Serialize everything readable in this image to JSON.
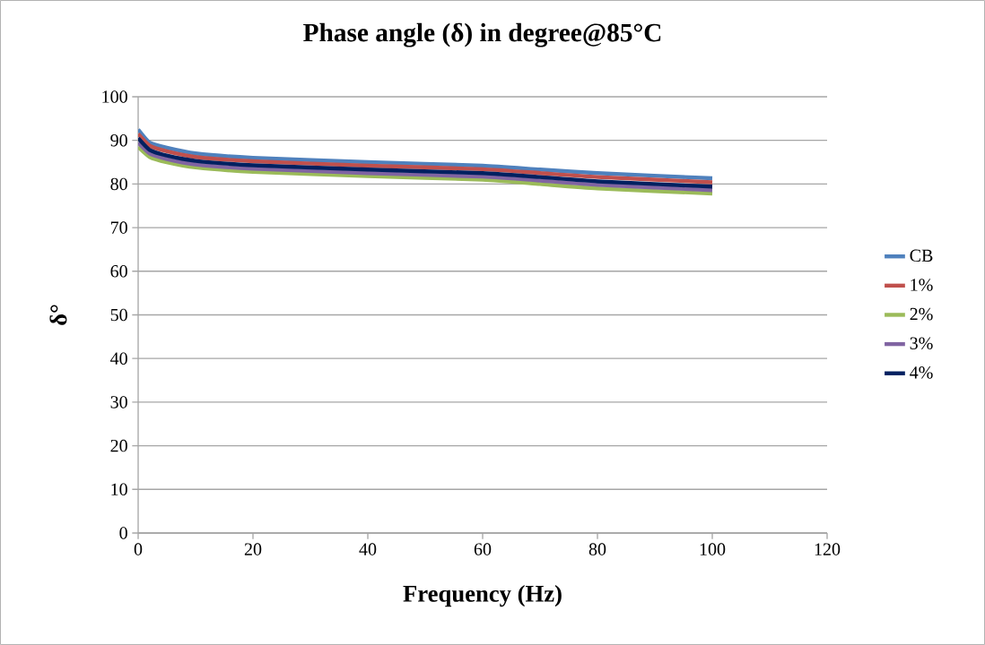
{
  "chart_data": {
    "type": "line",
    "title": "Phase angle (δ) in degree@85°C",
    "xlabel": "Frequency (Hz)",
    "ylabel": "δ°",
    "x": [
      0,
      2,
      5,
      10,
      20,
      40,
      60,
      70,
      80,
      100
    ],
    "series": [
      {
        "name": "CB",
        "color": "#4f81bd",
        "values": [
          92.5,
          89.5,
          88.3,
          87,
          86,
          85,
          84.2,
          83.3,
          82.5,
          81.3
        ]
      },
      {
        "name": "1%",
        "color": "#c0504d",
        "values": [
          91.5,
          88.8,
          87.5,
          86.2,
          85.2,
          84.2,
          83.4,
          82.5,
          81.6,
          80.4
        ]
      },
      {
        "name": "2%",
        "color": "#9bbb59",
        "values": [
          88.5,
          86.2,
          85,
          83.8,
          82.8,
          81.8,
          81,
          80,
          79,
          77.8
        ]
      },
      {
        "name": "3%",
        "color": "#8064a2",
        "values": [
          89.5,
          87,
          85.7,
          84.5,
          83.5,
          82.5,
          81.7,
          80.8,
          79.8,
          78.6
        ]
      },
      {
        "name": "4%",
        "color": "#002060",
        "values": [
          90.5,
          87.8,
          86.5,
          85.3,
          84.3,
          83.3,
          82.5,
          81.6,
          80.6,
          79.4
        ]
      }
    ],
    "xlim": [
      0,
      120
    ],
    "xticks": [
      0,
      20,
      40,
      60,
      80,
      100,
      120
    ],
    "ylim": [
      0,
      100
    ],
    "yticks": [
      0,
      10,
      20,
      30,
      40,
      50,
      60,
      70,
      80,
      90,
      100
    ],
    "grid": "y",
    "legend": "right",
    "marker": "none",
    "line_style": "solid"
  }
}
